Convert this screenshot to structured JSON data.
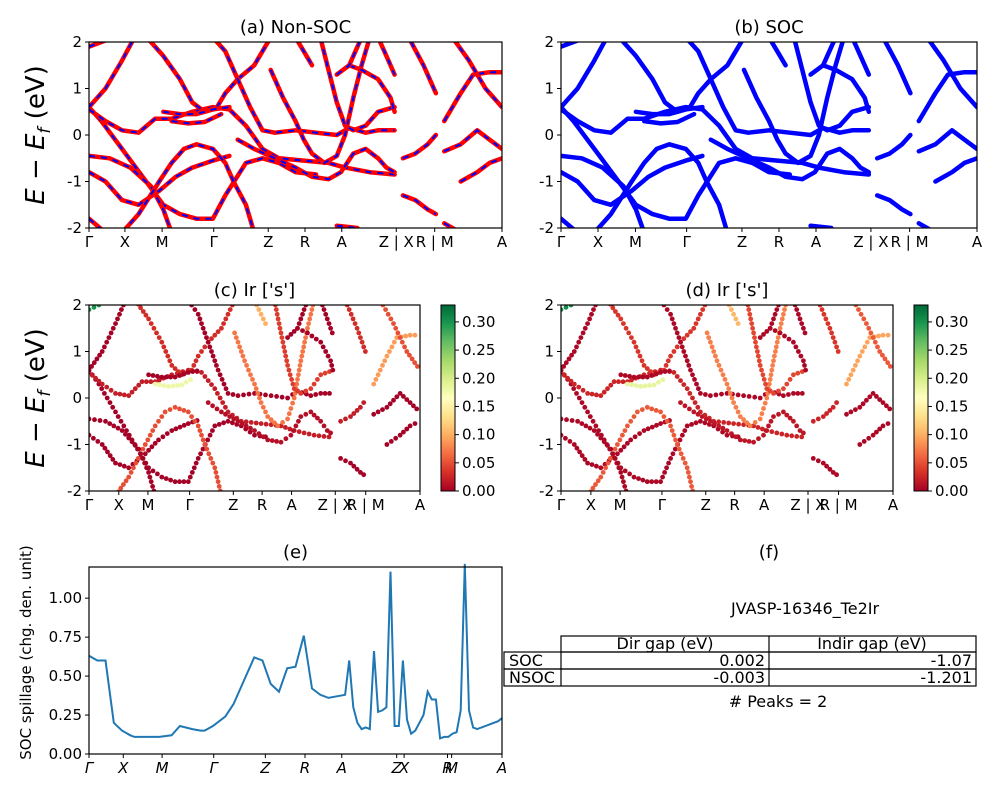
{
  "chart_data": [
    {
      "id": "a",
      "type": "line",
      "title": "(a) Non-SOC",
      "ylabel_tex": [
        "E − E",
        "f",
        " (eV)"
      ],
      "ylim": [
        -2,
        2
      ],
      "yticks": [
        "-2",
        "-1",
        "0",
        "1",
        "2"
      ],
      "xticks": [
        "Γ",
        "X",
        "M",
        "Γ",
        "Z",
        "R",
        "A",
        "Z | X",
        "R | M",
        "A"
      ],
      "series_colors": [
        "#ff0000",
        "#0000ff"
      ],
      "line_style": "red solid with blue dashes (SOC and non-SOC overlaid)"
    },
    {
      "id": "b",
      "type": "line",
      "title": "(b) SOC",
      "ylim": [
        -2,
        2
      ],
      "yticks": [
        "-2",
        "-1",
        "0",
        "1",
        "2"
      ],
      "xticks": [
        "Γ",
        "X",
        "M",
        "Γ",
        "Z",
        "R",
        "A",
        "Z | X",
        "R | M",
        "A"
      ],
      "series_colors": [
        "#0000ff"
      ]
    },
    {
      "id": "c",
      "type": "scatter",
      "title": "(c)  Ir ['s']",
      "ylabel_tex": [
        "E − E",
        "f",
        " (eV)"
      ],
      "ylim": [
        -2,
        2
      ],
      "yticks": [
        "-2",
        "-1",
        "0",
        "1",
        "2"
      ],
      "xticks": [
        "Γ",
        "X",
        "M",
        "Γ",
        "Z",
        "R",
        "A",
        "Z | X",
        "R | M",
        "A"
      ],
      "colorbar": {
        "range": [
          0,
          0.33
        ],
        "ticks": [
          "0.00",
          "0.05",
          "0.10",
          "0.15",
          "0.20",
          "0.25",
          "0.30"
        ],
        "colormap": "RdYlGn"
      }
    },
    {
      "id": "d",
      "type": "scatter",
      "title": "(d) Ir ['s']",
      "ylim": [
        -2,
        2
      ],
      "yticks": [
        "-2",
        "-1",
        "0",
        "1",
        "2"
      ],
      "xticks": [
        "Γ",
        "X",
        "M",
        "Γ",
        "Z",
        "R",
        "A",
        "Z | X",
        "R | M",
        "A"
      ],
      "colorbar": {
        "range": [
          0,
          0.33
        ],
        "ticks": [
          "0.00",
          "0.05",
          "0.10",
          "0.15",
          "0.20",
          "0.25",
          "0.30"
        ],
        "colormap": "RdYlGn"
      }
    },
    {
      "id": "e",
      "type": "line",
      "title": "(e)",
      "ylabel": "SOC spillage (chg. den. unit)",
      "ylim": [
        0,
        1.2
      ],
      "yticks": [
        "0.00",
        "0.25",
        "0.50",
        "0.75",
        "1.00"
      ],
      "xticks": [
        "Γ",
        "X",
        "M",
        "Γ",
        "Z",
        "R",
        "A",
        "Z",
        "X",
        "R",
        "M",
        "A"
      ],
      "color": "#1f77b4",
      "x": [
        0,
        2,
        4,
        6,
        8,
        10,
        11,
        13,
        15,
        17,
        20,
        22,
        25,
        27,
        28,
        30,
        33,
        35,
        38,
        40,
        42,
        44,
        46,
        48,
        50,
        52,
        54,
        56,
        58,
        60,
        62,
        63,
        64,
        65,
        66,
        67,
        68,
        69,
        70,
        71,
        72,
        73,
        74,
        75,
        76,
        77,
        78,
        79,
        80,
        81,
        82,
        83,
        84,
        85,
        86,
        87,
        88,
        89,
        90,
        91,
        92,
        93,
        94,
        95,
        96,
        97,
        98,
        99,
        100
      ],
      "values": [
        0.63,
        0.6,
        0.6,
        0.2,
        0.15,
        0.12,
        0.11,
        0.11,
        0.11,
        0.11,
        0.12,
        0.18,
        0.16,
        0.15,
        0.15,
        0.18,
        0.24,
        0.32,
        0.5,
        0.62,
        0.6,
        0.45,
        0.4,
        0.55,
        0.56,
        0.76,
        0.42,
        0.38,
        0.36,
        0.37,
        0.38,
        0.6,
        0.3,
        0.2,
        0.16,
        0.17,
        0.16,
        0.66,
        0.27,
        0.28,
        0.3,
        1.17,
        0.18,
        0.18,
        0.6,
        0.22,
        0.13,
        0.15,
        0.2,
        0.25,
        0.4,
        0.35,
        0.35,
        0.1,
        0.11,
        0.11,
        0.13,
        0.14,
        0.28,
        1.22,
        0.28,
        0.17,
        0.16,
        0.17,
        0.18,
        0.19,
        0.2,
        0.21,
        0.23
      ]
    }
  ],
  "panel_f": {
    "title": "(f)",
    "material": "JVASP-16346_Te2Ir",
    "table": {
      "headers": [
        "Dir gap (eV)",
        "Indir gap (eV)"
      ],
      "rows": [
        {
          "label": "SOC",
          "dir": "0.002",
          "indir": "-1.07"
        },
        {
          "label": "NSOC",
          "dir": "-0.003",
          "indir": "-1.201"
        }
      ]
    },
    "peaks": "# Peaks = 2"
  }
}
